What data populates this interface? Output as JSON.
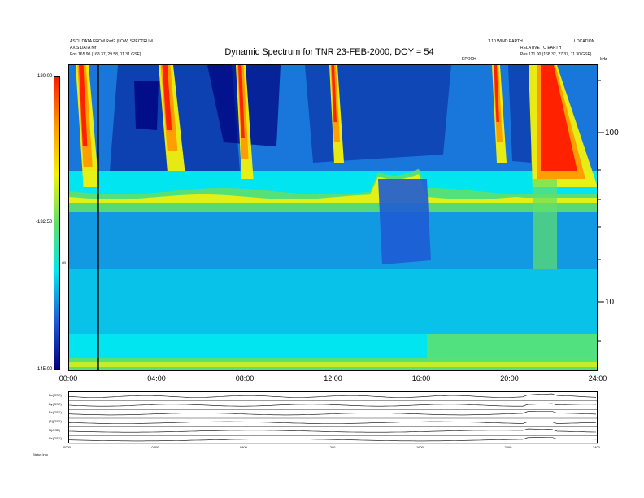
{
  "header": {
    "left_line1": "ASCII DATA FROM Rad2 (LOW) SPECTRUM",
    "left_line2": "AXIS DATA ref",
    "left_line3": "Pos   165.90 (168.37, 29.58, 11.31 GSE)",
    "right_line1": "1.10 WIND EARTH",
    "right_line2": "RELATIVE TO EARTH",
    "right_line3": "Pos   171.00 (168.32, 27.37, 11.30 GSE)",
    "right_corner": "LOCATION",
    "mid_label": "EPOCH"
  },
  "chart_data": {
    "type": "heatmap",
    "title": "Dynamic Spectrum for TNR 23-FEB-2000, DOY = 54",
    "x_ticks": [
      "00:00",
      "04:00",
      "08:00",
      "12:00",
      "16:00",
      "20:00",
      "24:00"
    ],
    "xlim": [
      0,
      24
    ],
    "y_ticks": [
      "100",
      "10"
    ],
    "y_unit": "kHz",
    "y_scale": "log",
    "colorbar": {
      "ticks": [
        "-120.00",
        "-132.50",
        "-145.00"
      ],
      "range": [
        -145.0,
        -120.0
      ],
      "label": "dB"
    },
    "colors": {
      "deep_blue": "#00007f",
      "blue": "#1f5bd6",
      "cyan": "#00e5f0",
      "green": "#5fe06a",
      "yellow": "#f2f20a",
      "orange": "#ff9a00",
      "red": "#ff1a00",
      "black": "#000000"
    },
    "marker_line_hour": 1.3,
    "bottom_panels": {
      "rows": [
        "Bx(GSE)",
        "By(GSE)",
        "Bz(GSE)",
        "|B|(GSE)",
        "N(GSE)",
        "Vx(GSE)"
      ],
      "x_ticks": [
        "0000",
        "0400",
        "0800",
        "1200",
        "1600",
        "2000",
        "2400"
      ],
      "footer_left": "Status   info"
    }
  }
}
